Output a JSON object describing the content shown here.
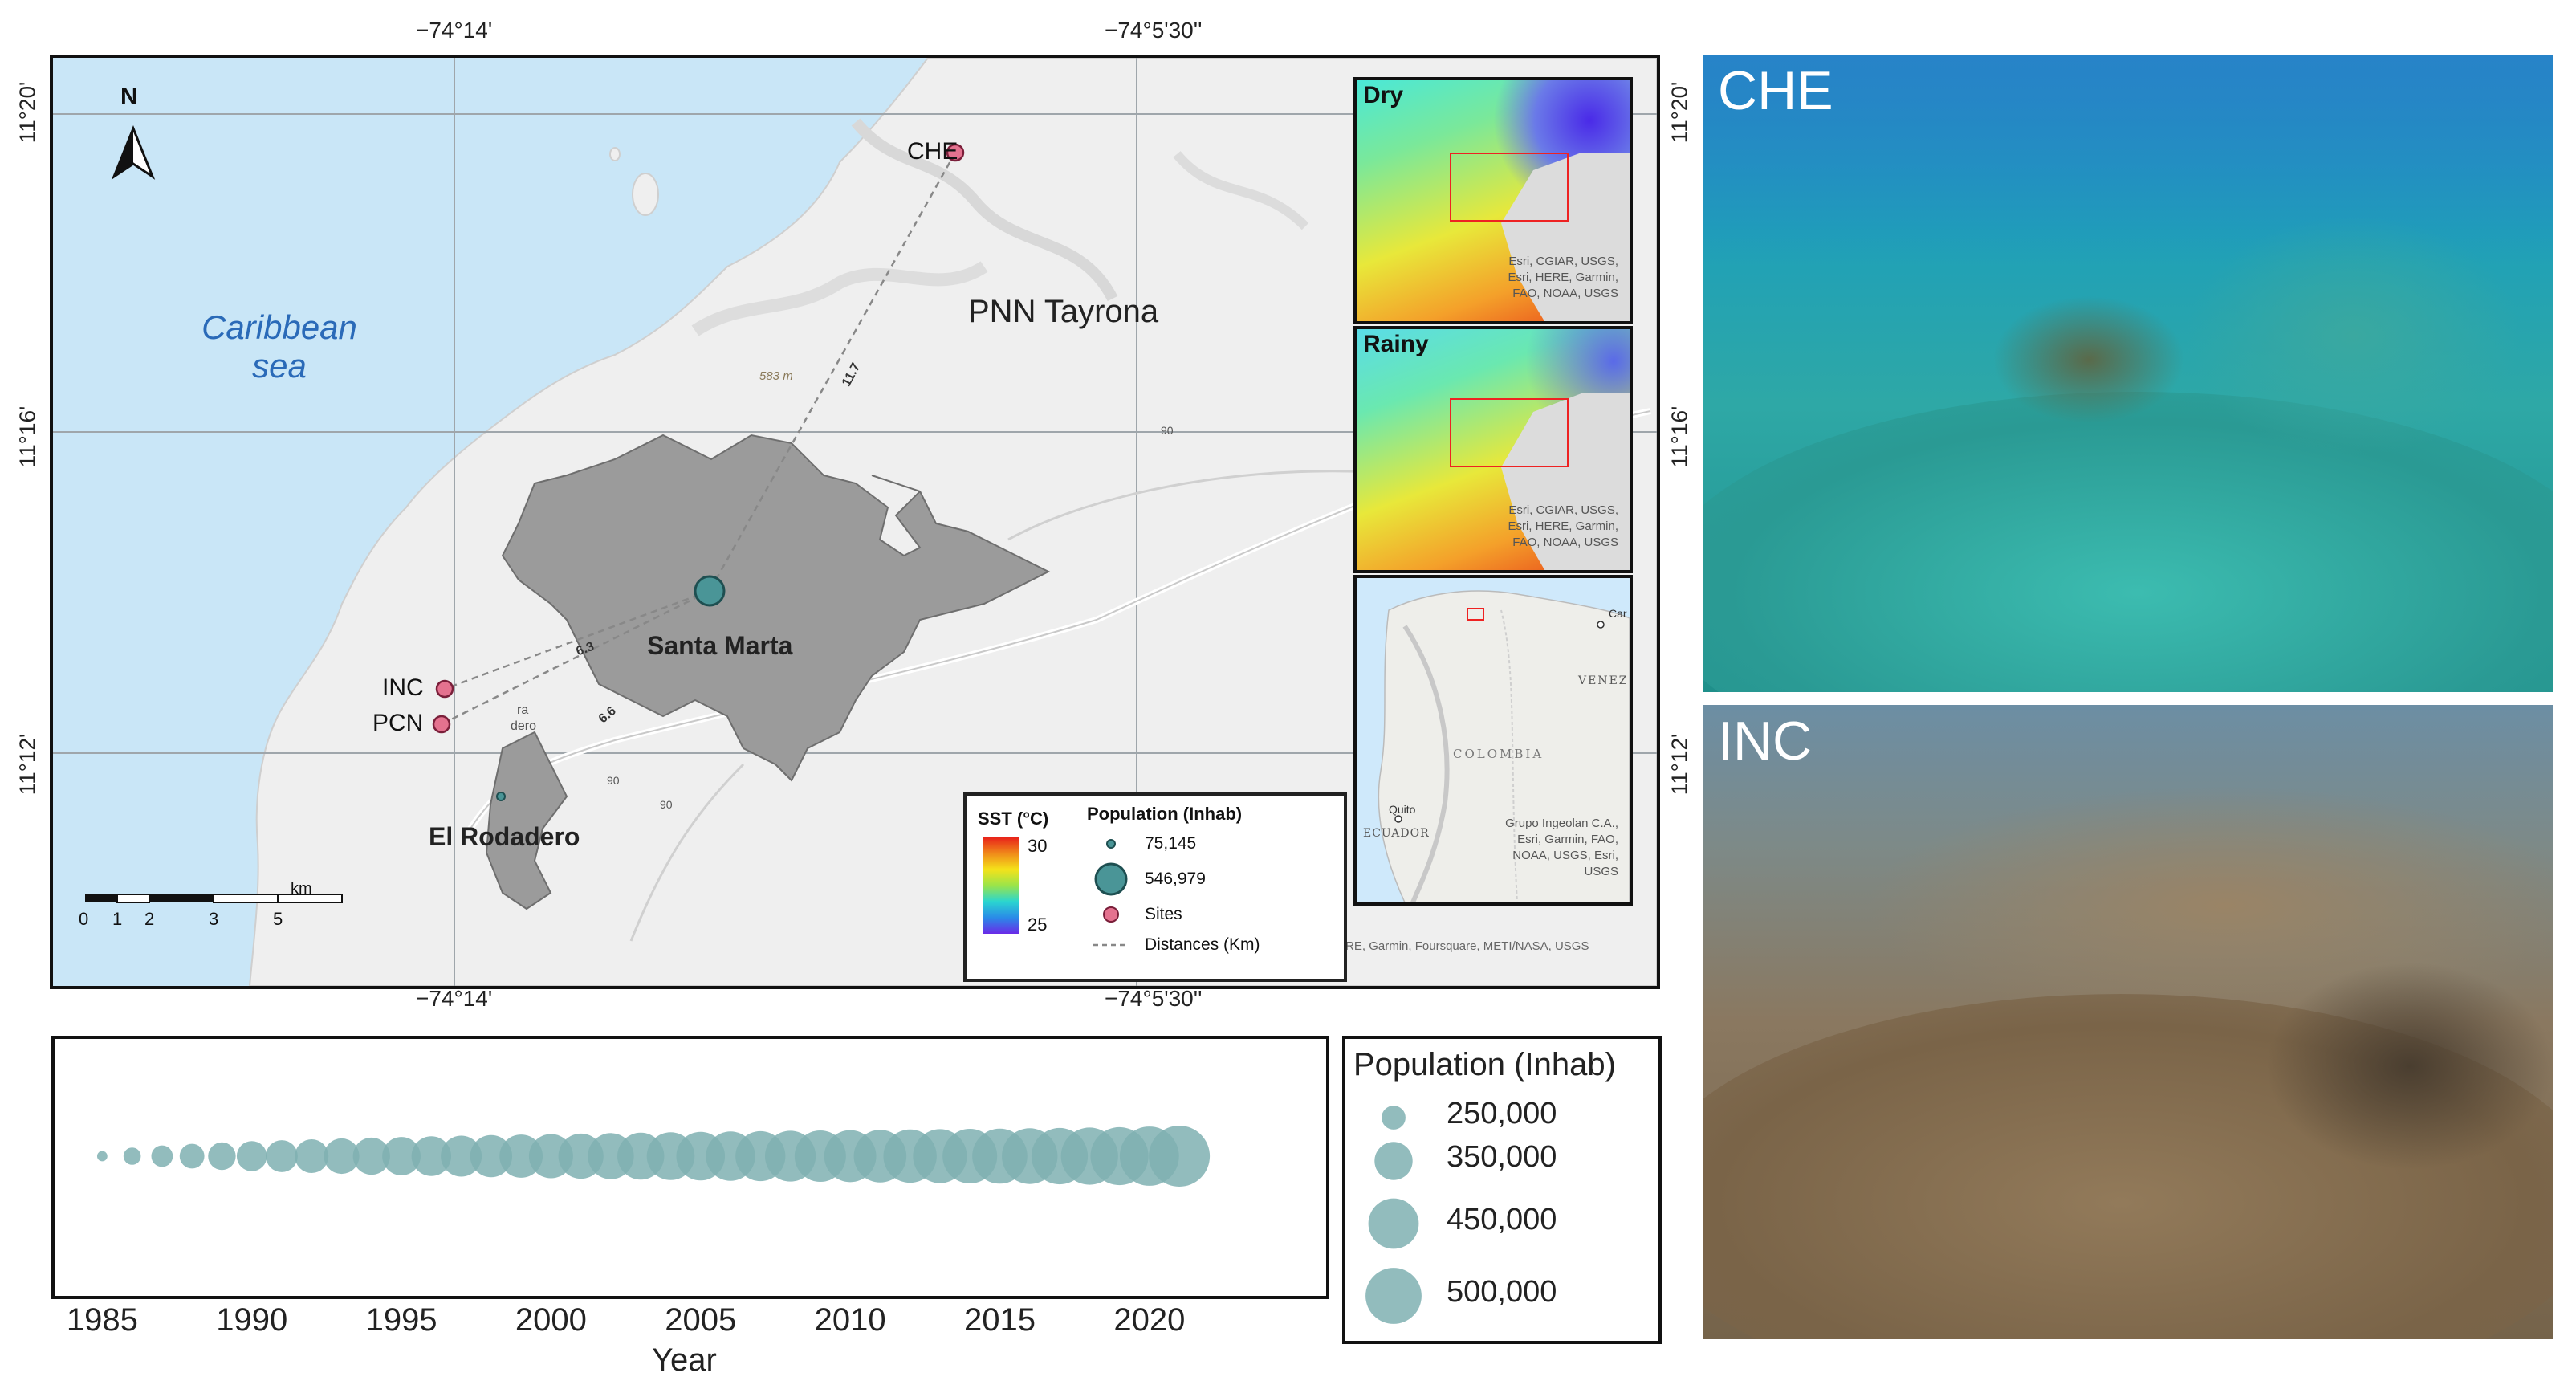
{
  "coords": {
    "top_lon": [
      "−74°14'",
      "−74°5'30''"
    ],
    "bottom_lon": [
      "−74°14'",
      "−74°5'30''"
    ],
    "lat": [
      "11°20'",
      "11°16'",
      "11°12'"
    ]
  },
  "map": {
    "north": "N",
    "sea_label_1": "Caribbean",
    "sea_label_2": "sea",
    "park_label": "PNN Tayrona",
    "city_label": "Santa Marta",
    "town_label": "El Rodadero",
    "town_small": "dero",
    "town_small2": "ra",
    "elevation": "583 m",
    "road_90a": "90",
    "road_90b": "90",
    "road_90c": "90",
    "sites": [
      {
        "label": "CHE"
      },
      {
        "label": "INC"
      },
      {
        "label": "PCN"
      }
    ],
    "distances": [
      "11.7",
      "6.3",
      "6.6"
    ],
    "scale_ticks": [
      "0",
      "1",
      "2",
      "3",
      "5"
    ],
    "scale_unit": "km",
    "credit": "Esri, NASA, NGA, USGS; Esri, HERE, Garmin, Foursquare, METI/NASA, USGS"
  },
  "legend": {
    "sst_title": "SST (°C)",
    "sst_max": "30",
    "sst_min": "25",
    "pop_title": "Population (Inhab)",
    "pop_small": "75,145",
    "pop_large": "546,979",
    "sites": "Sites",
    "distances": "Distances (Km)"
  },
  "insets": {
    "dry": {
      "label": "Dry",
      "credit": [
        "Esri, CGIAR, USGS,",
        "Esri, HERE, Garmin,",
        "FAO, NOAA, USGS"
      ]
    },
    "rainy": {
      "label": "Rainy",
      "credit": [
        "Esri, CGIAR, USGS,",
        "Esri, HERE, Garmin,",
        "FAO, NOAA, USGS"
      ]
    },
    "overview": {
      "labels": {
        "venez": "VENEZ",
        "colombia": "COLOMBIA",
        "ecuador": "ECUADOR",
        "quito": "Quito",
        "car": "Car"
      },
      "credit": [
        "Grupo Ingeolan C.A.,",
        "Esri, Garmin, FAO,",
        "NOAA, USGS, Esri,",
        "USGS"
      ]
    }
  },
  "photos": [
    {
      "label": "CHE",
      "color_top": "#1a7fb8",
      "color_bottom": "#2aa8a0"
    },
    {
      "label": "INC",
      "color_top": "#6a8aa0",
      "color_bottom": "#8a7558"
    }
  ],
  "chart_data": {
    "type": "scatter",
    "x": [
      1985,
      1986,
      1987,
      1988,
      1989,
      1990,
      1991,
      1992,
      1993,
      1994,
      1995,
      1996,
      1997,
      1998,
      1999,
      2000,
      2001,
      2002,
      2003,
      2004,
      2005,
      2006,
      2007,
      2008,
      2009,
      2010,
      2011,
      2012,
      2013,
      2014,
      2015,
      2016,
      2017,
      2018,
      2019,
      2020,
      2021
    ],
    "series": [
      {
        "values": [
          170000,
          210000,
          235000,
          255000,
          275000,
          292000,
          305000,
          318000,
          330000,
          342000,
          352000,
          362000,
          372000,
          381000,
          390000,
          398000,
          406000,
          414000,
          421000,
          428000,
          435000,
          441000,
          447000,
          453000,
          459000,
          465000,
          470000,
          476000,
          481000,
          487000,
          492000,
          498000,
          504000,
          511000,
          519000,
          530000,
          547000
        ]
      }
    ],
    "xlabel": "Year",
    "xticks": [
      "1985",
      "1990",
      "1995",
      "2000",
      "2005",
      "2010",
      "2015",
      "2020"
    ],
    "xlim": [
      1983.3,
      2025.8
    ],
    "size_legend_title": "Population (Inhab)",
    "size_legend": [
      {
        "label": "250,000",
        "value": 250000
      },
      {
        "label": "350,000",
        "value": 350000
      },
      {
        "label": "450,000",
        "value": 450000
      },
      {
        "label": "500,000",
        "value": 500000
      }
    ],
    "color": "#7fb0b2"
  }
}
